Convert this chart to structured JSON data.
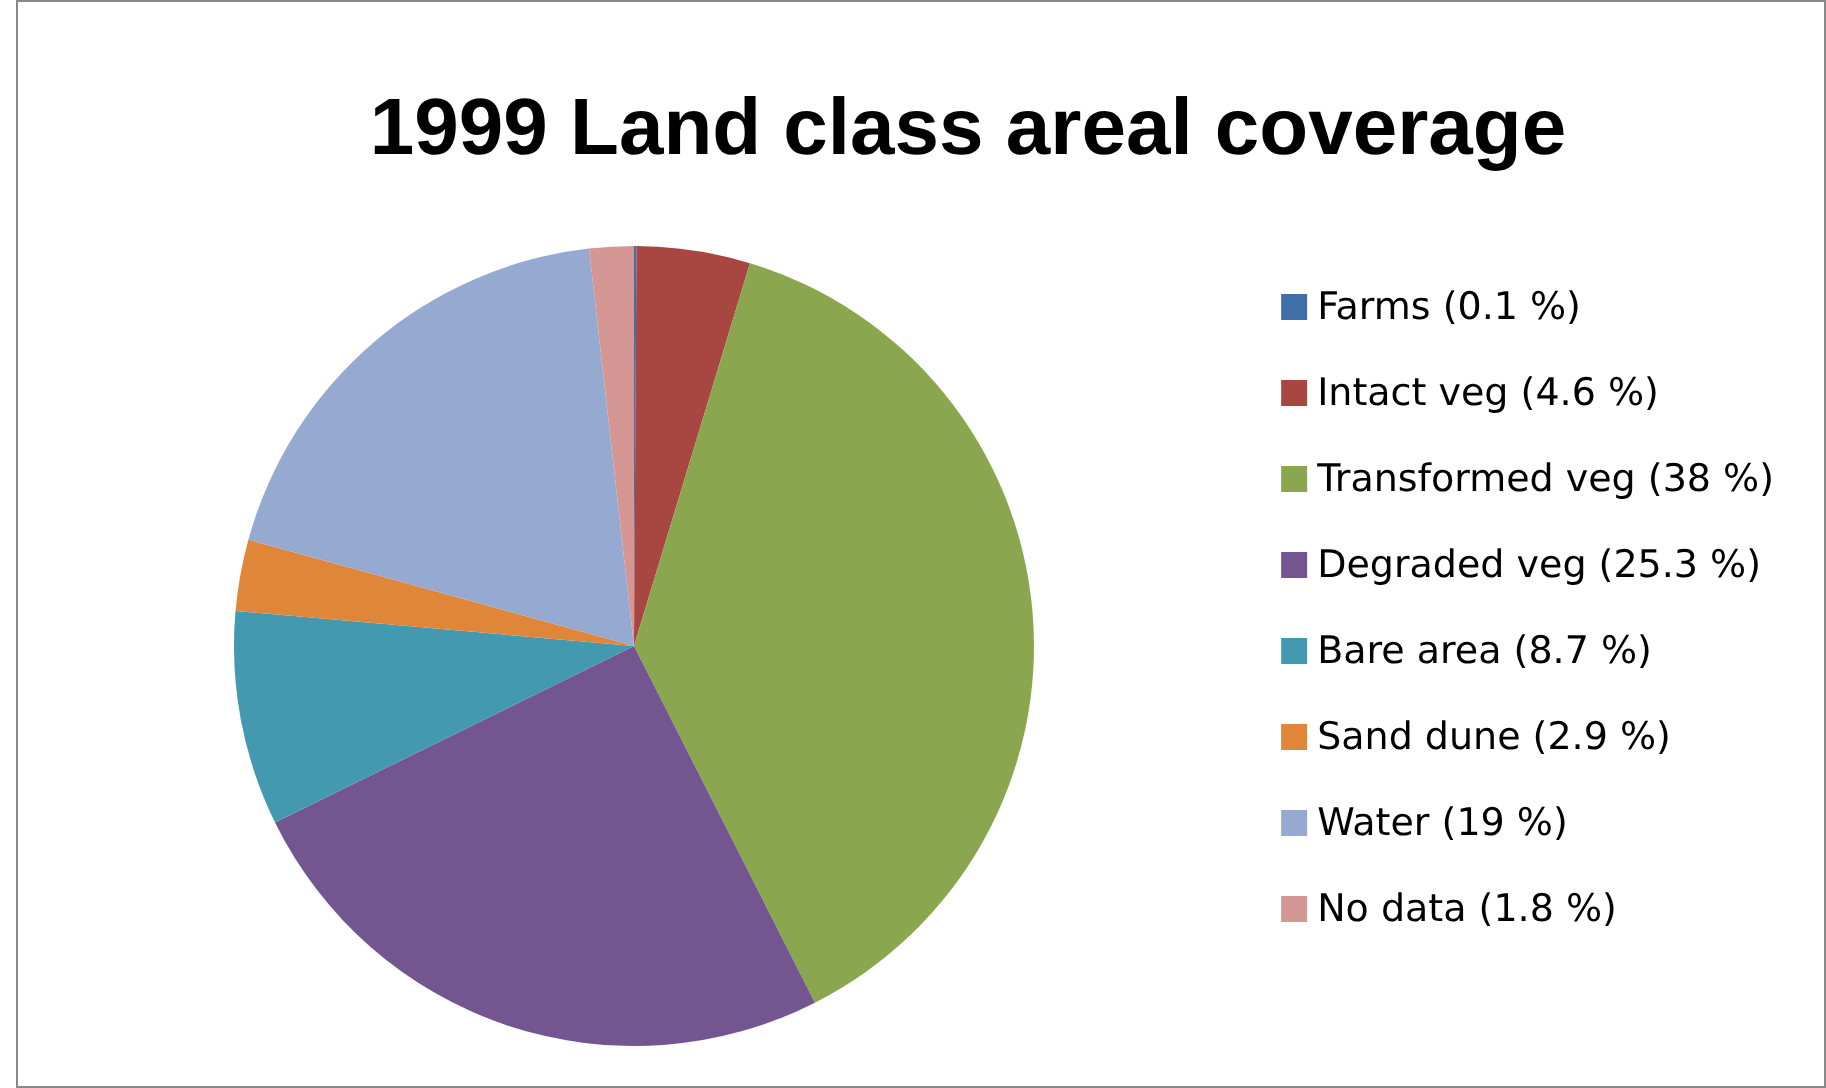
{
  "chart_data": {
    "type": "pie",
    "title": "1999 Land class areal coverage",
    "categories": [
      "Farms (0.1 %)",
      "Intact veg (4.6 %)",
      "Transformed veg (38 %)",
      "Degraded veg (25.3 %)",
      "Bare area (8.7 %)",
      "Sand dune (2.9 %)",
      "Water (19 %)",
      "No data (1.8 %)"
    ],
    "values": [
      0.1,
      4.6,
      38,
      25.3,
      8.7,
      2.9,
      19,
      1.8
    ],
    "colors": [
      "#3f6ea8",
      "#a84642",
      "#8aa64e",
      "#735590",
      "#4299b0",
      "#df8638",
      "#95a9d1",
      "#d49794"
    ],
    "legend": "right"
  }
}
